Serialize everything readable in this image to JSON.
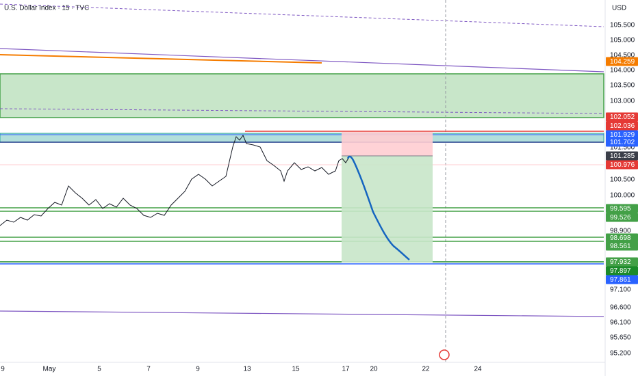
{
  "header": {
    "title": "U.S. Dollar Index · 15 · TVC",
    "currency": "USD"
  },
  "price_axis": {
    "labels": [
      "105.500",
      "105.000",
      "104.500",
      "104.000",
      "103.500",
      "103.000",
      "101.500",
      "100.500",
      "100.000",
      "98.900",
      "97.100",
      "96.600",
      "96.100",
      "95.650",
      "95.200"
    ]
  },
  "price_tags": [
    {
      "label": "104.259",
      "color": "#f57c00"
    },
    {
      "label": "102.052",
      "color": "#e53935"
    },
    {
      "label": "102.036",
      "color": "#e53935"
    },
    {
      "label": "101.929",
      "color": "#2962ff"
    },
    {
      "label": "101.702",
      "color": "#2962ff"
    },
    {
      "label": "101.285",
      "color": "#3a3e48"
    },
    {
      "label": "100.976",
      "color": "#e53935"
    },
    {
      "label": "99.595",
      "color": "#43a047"
    },
    {
      "label": "99.526",
      "color": "#43a047"
    },
    {
      "label": "98.698",
      "color": "#43a047"
    },
    {
      "label": "98.561",
      "color": "#43a047"
    },
    {
      "label": "97.932",
      "color": "#43a047"
    },
    {
      "label": "97.897",
      "color": "#1b8a2a"
    },
    {
      "label": "97.861",
      "color": "#2962ff"
    }
  ],
  "time_axis": {
    "labels": [
      "9",
      "May",
      "5",
      "7",
      "9",
      "13",
      "15",
      "17",
      "20",
      "22",
      "24"
    ]
  }
}
